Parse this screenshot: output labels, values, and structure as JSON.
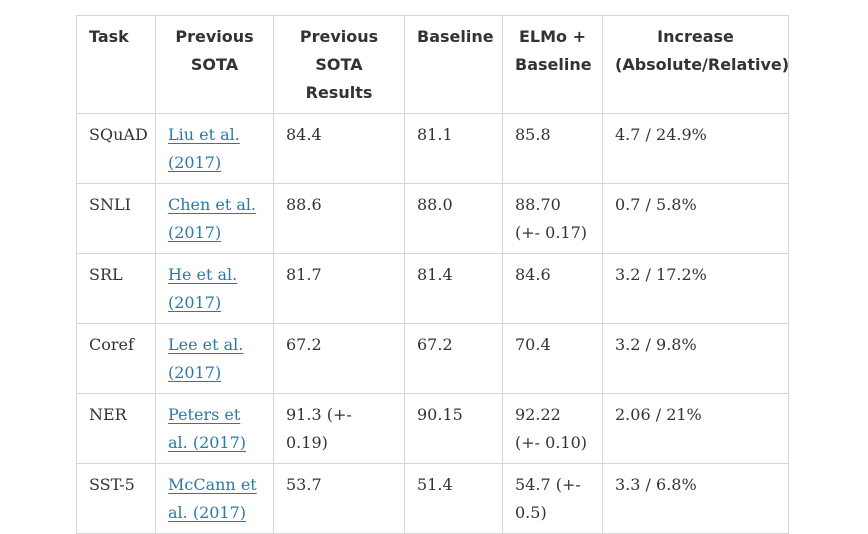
{
  "table": {
    "headers": [
      "Task",
      "Previous SOTA",
      "Previous SOTA Results",
      "Baseline",
      "ELMo + Baseline",
      "Increase (Absolute/Relative)"
    ],
    "rows": [
      {
        "task": "SQuAD",
        "sota": "Liu et al. (2017)",
        "sota_result": "84.4",
        "baseline": "81.1",
        "elmo": "85.8",
        "increase": "4.7 / 24.9%"
      },
      {
        "task": "SNLI",
        "sota": "Chen et al. (2017)",
        "sota_result": "88.6",
        "baseline": "88.0",
        "elmo": "88.70 (+- 0.17)",
        "increase": "0.7 / 5.8%"
      },
      {
        "task": "SRL",
        "sota": "He et al. (2017)",
        "sota_result": "81.7",
        "baseline": "81.4",
        "elmo": "84.6",
        "increase": "3.2 / 17.2%"
      },
      {
        "task": "Coref",
        "sota": "Lee et al. (2017)",
        "sota_result": "67.2",
        "baseline": "67.2",
        "elmo": "70.4",
        "increase": "3.2 / 9.8%"
      },
      {
        "task": "NER",
        "sota": "Peters et al. (2017)",
        "sota_result": "91.3 (+- 0.19)",
        "baseline": "90.15",
        "elmo": "92.22 (+- 0.10)",
        "increase": "2.06 / 21%"
      },
      {
        "task": "SST-5",
        "sota": "McCann et al. (2017)",
        "sota_result": "53.7",
        "baseline": "51.4",
        "elmo": "54.7 (+- 0.5)",
        "increase": "3.3 / 6.8%"
      }
    ]
  },
  "colors": {
    "text": "#333333",
    "link": "#2a7aa8",
    "border": "#d4d4d4"
  }
}
